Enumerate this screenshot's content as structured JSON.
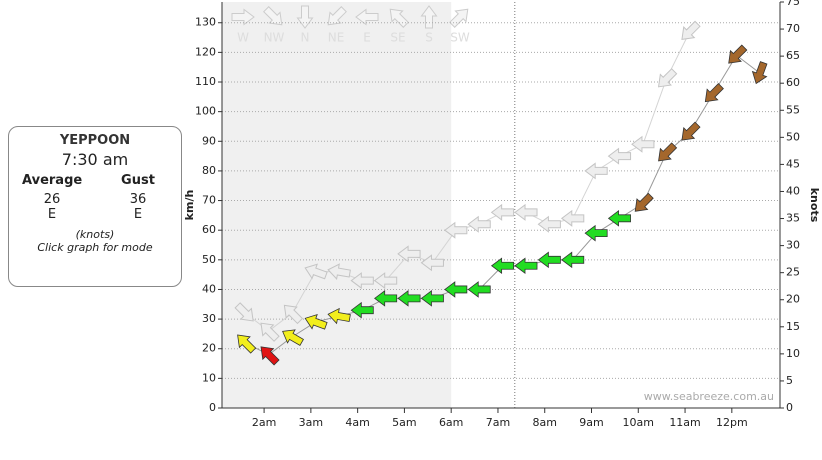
{
  "info": {
    "station": "YEPPOON",
    "time": "7:30 am",
    "average": 26,
    "gust": 36,
    "average_dir": "E",
    "gust_dir": "E",
    "units": "(knots)",
    "hint": "Click graph for mode"
  },
  "chart_data": {
    "type": "wind-arrows",
    "y_label": "km/h",
    "y2_label": "knots",
    "watermark": "www.seabreeze.com.au",
    "compass_legend": [
      "W",
      "NW",
      "N",
      "NE",
      "E",
      "SE",
      "S",
      "SW"
    ],
    "x": [
      1.6,
      2.1,
      2.6,
      3.1,
      3.6,
      4.1,
      4.6,
      5.1,
      5.6,
      6.1,
      6.6,
      7.1,
      7.6,
      8.1,
      8.6,
      9.1,
      9.6,
      10.1,
      10.6,
      11.1,
      11.6,
      12.1,
      12.6
    ],
    "series": [
      {
        "name": "Average",
        "color": "#999999",
        "values": [
          22,
          18,
          24,
          29,
          31,
          33,
          37,
          37,
          37,
          40,
          40,
          48,
          48,
          50,
          50,
          59,
          64,
          69,
          86,
          93,
          106,
          119,
          113
        ],
        "direction": [
          135,
          135,
          120,
          110,
          100,
          90,
          90,
          90,
          90,
          90,
          90,
          90,
          90,
          90,
          90,
          90,
          90,
          45,
          45,
          45,
          45,
          45,
          20
        ],
        "colors": [
          "#f2ee1c",
          "#e01414",
          "#f2ee1c",
          "#f2ee1c",
          "#f2ee1c",
          "#22dd22",
          "#22dd22",
          "#22dd22",
          "#22dd22",
          "#22dd22",
          "#22dd22",
          "#22dd22",
          "#22dd22",
          "#22dd22",
          "#22dd22",
          "#22dd22",
          "#22dd22",
          "#a4672c",
          "#a4672c",
          "#a4672c",
          "#a4672c",
          "#a4672c",
          "#a4672c"
        ]
      },
      {
        "name": "Gust",
        "color": "#d4d4d4",
        "values": [
          32,
          26,
          32,
          46,
          46,
          43,
          43,
          52,
          49,
          60,
          62,
          66,
          66,
          62,
          64,
          80,
          85,
          89,
          111,
          127,
          null,
          null,
          null
        ],
        "direction": [
          315,
          135,
          135,
          110,
          100,
          90,
          90,
          90,
          90,
          90,
          90,
          90,
          90,
          90,
          90,
          90,
          90,
          90,
          45,
          45,
          null,
          null,
          null
        ]
      }
    ],
    "xlim": [
      1.1,
      13.03
    ],
    "xticks": [
      {
        "value": 2,
        "label": "2am"
      },
      {
        "value": 3,
        "label": "3am"
      },
      {
        "value": 4,
        "label": "4am"
      },
      {
        "value": 5,
        "label": "5am"
      },
      {
        "value": 6,
        "label": "6am"
      },
      {
        "value": 7,
        "label": "7am"
      },
      {
        "value": 8,
        "label": "8am"
      },
      {
        "value": 9,
        "label": "9am"
      },
      {
        "value": 10,
        "label": "10am"
      },
      {
        "value": 11,
        "label": "11am"
      },
      {
        "value": 12,
        "label": "12pm"
      }
    ],
    "ylim": [
      0,
      137
    ],
    "yticks": [
      0,
      10,
      20,
      30,
      40,
      50,
      60,
      70,
      80,
      90,
      100,
      110,
      120,
      130
    ],
    "y2lim": [
      0,
      75
    ],
    "y2ticks": [
      0,
      5,
      10,
      15,
      20,
      25,
      30,
      35,
      40,
      45,
      50,
      55,
      60,
      65,
      70,
      75
    ],
    "shade_until": 6,
    "now_line": 7.36,
    "grid": true
  }
}
